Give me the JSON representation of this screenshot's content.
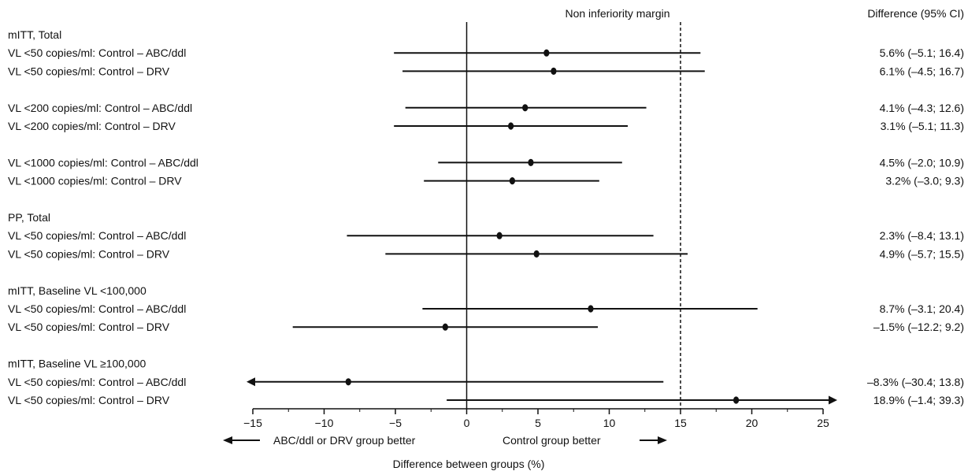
{
  "chart_data": {
    "type": "forest",
    "xlabel": "Difference between groups (%)",
    "xlim": [
      -15,
      25
    ],
    "xticks": [
      -15,
      -10,
      -5,
      0,
      5,
      10,
      15,
      20,
      25
    ],
    "reference_line": 0,
    "margin_line": {
      "value": 15,
      "label": "Non inferiority margin",
      "style": "dashed"
    },
    "right_column_header": "Difference (95% CI)",
    "direction_labels": {
      "left": "ABC/ddl or DRV group better",
      "right": "Control group better"
    },
    "groups": [
      {
        "header": "mITT, Total",
        "rows": [
          {
            "label": "VL <50 copies/ml: Control – ABC/ddl",
            "estimate": 5.6,
            "lower": -5.1,
            "upper": 16.4,
            "ci_text": "5.6% (–5.1; 16.4)"
          },
          {
            "label": "VL <50 copies/ml: Control – DRV",
            "estimate": 6.1,
            "lower": -4.5,
            "upper": 16.7,
            "ci_text": "6.1% (–4.5; 16.7)"
          }
        ]
      },
      {
        "header": "",
        "rows": [
          {
            "label": "VL <200 copies/ml: Control – ABC/ddl",
            "estimate": 4.1,
            "lower": -4.3,
            "upper": 12.6,
            "ci_text": "4.1% (–4.3; 12.6)"
          },
          {
            "label": "VL <200 copies/ml: Control – DRV",
            "estimate": 3.1,
            "lower": -5.1,
            "upper": 11.3,
            "ci_text": "3.1% (–5.1; 11.3)"
          }
        ]
      },
      {
        "header": "",
        "rows": [
          {
            "label": "VL <1000 copies/ml: Control – ABC/ddl",
            "estimate": 4.5,
            "lower": -2.0,
            "upper": 10.9,
            "ci_text": "4.5% (–2.0; 10.9)"
          },
          {
            "label": "VL <1000 copies/ml: Control – DRV",
            "estimate": 3.2,
            "lower": -3.0,
            "upper": 9.3,
            "ci_text": "3.2% (–3.0; 9.3)"
          }
        ]
      },
      {
        "header": "PP, Total",
        "rows": [
          {
            "label": "VL <50 copies/ml: Control – ABC/ddl",
            "estimate": 2.3,
            "lower": -8.4,
            "upper": 13.1,
            "ci_text": "2.3% (–8.4; 13.1)"
          },
          {
            "label": "VL <50 copies/ml: Control – DRV",
            "estimate": 4.9,
            "lower": -5.7,
            "upper": 15.5,
            "ci_text": "4.9% (–5.7; 15.5)"
          }
        ]
      },
      {
        "header": "mITT, Baseline VL <100,000",
        "rows": [
          {
            "label": "VL <50 copies/ml: Control – ABC/ddl",
            "estimate": 8.7,
            "lower": -3.1,
            "upper": 20.4,
            "ci_text": "8.7% (–3.1; 20.4)"
          },
          {
            "label": "VL <50 copies/ml: Control – DRV",
            "estimate": -1.5,
            "lower": -12.2,
            "upper": 9.2,
            "ci_text": "–1.5% (–12.2; 9.2)"
          }
        ]
      },
      {
        "header": "mITT, Baseline VL ≥100,000",
        "rows": [
          {
            "label": "VL <50 copies/ml: Control – ABC/ddl",
            "estimate": -8.3,
            "lower": -30.4,
            "upper": 13.8,
            "ci_text": "–8.3% (–30.4; 13.8)"
          },
          {
            "label": "VL <50 copies/ml: Control – DRV",
            "estimate": 18.9,
            "lower": -1.4,
            "upper": 39.3,
            "ci_text": "18.9% (–1.4; 39.3)"
          }
        ]
      }
    ]
  }
}
